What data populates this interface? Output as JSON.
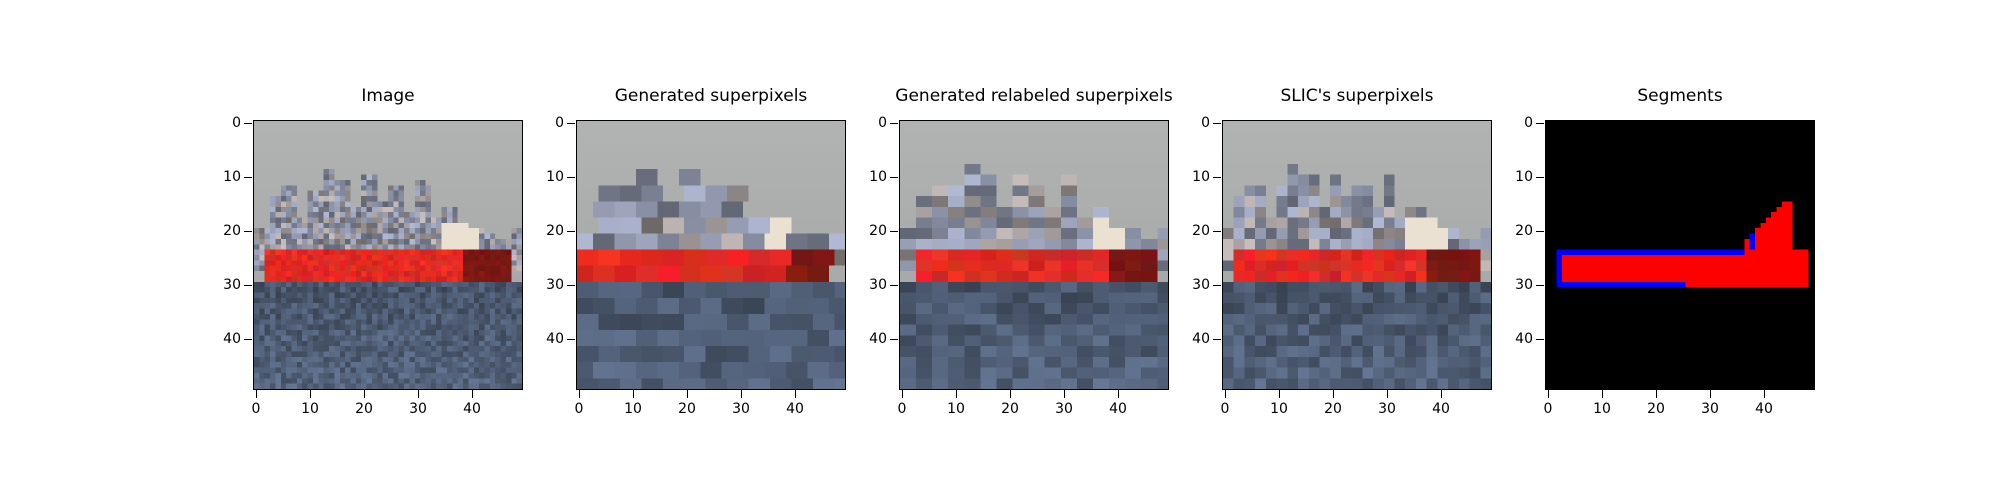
{
  "chart_data": [
    {
      "type": "heatmap",
      "title": "Image",
      "grid": false,
      "xlim": [
        0,
        49
      ],
      "ylim": [
        49,
        0
      ],
      "xticks": [
        0,
        10,
        20,
        30,
        40
      ],
      "yticks": [
        0,
        10,
        20,
        30,
        40
      ],
      "xtick_labels": [
        "0",
        "10",
        "20",
        "30",
        "40"
      ],
      "ytick_labels": [
        "0",
        "10",
        "20",
        "30",
        "40"
      ]
    },
    {
      "type": "heatmap",
      "title": "Generated superpixels",
      "grid": false,
      "xlim": [
        0,
        49
      ],
      "ylim": [
        49,
        0
      ],
      "xticks": [
        0,
        10,
        20,
        30,
        40
      ],
      "yticks": [
        0,
        10,
        20,
        30,
        40
      ],
      "xtick_labels": [
        "0",
        "10",
        "20",
        "30",
        "40"
      ],
      "ytick_labels": [
        "0",
        "10",
        "20",
        "30",
        "40"
      ]
    },
    {
      "type": "heatmap",
      "title": "Generated relabeled superpixels",
      "grid": false,
      "xlim": [
        0,
        49
      ],
      "ylim": [
        49,
        0
      ],
      "xticks": [
        0,
        10,
        20,
        30,
        40
      ],
      "yticks": [
        0,
        10,
        20,
        30,
        40
      ],
      "xtick_labels": [
        "0",
        "10",
        "20",
        "30",
        "40"
      ],
      "ytick_labels": [
        "0",
        "10",
        "20",
        "30",
        "40"
      ]
    },
    {
      "type": "heatmap",
      "title": "SLIC's superpixels",
      "grid": false,
      "xlim": [
        0,
        49
      ],
      "ylim": [
        49,
        0
      ],
      "xticks": [
        0,
        10,
        20,
        30,
        40
      ],
      "yticks": [
        0,
        10,
        20,
        30,
        40
      ],
      "xtick_labels": [
        "0",
        "10",
        "20",
        "30",
        "40"
      ],
      "ytick_labels": [
        "0",
        "10",
        "20",
        "30",
        "40"
      ]
    },
    {
      "type": "heatmap",
      "title": "Segments",
      "grid": false,
      "xlim": [
        0,
        49
      ],
      "ylim": [
        49,
        0
      ],
      "xticks": [
        0,
        10,
        20,
        30,
        40
      ],
      "yticks": [
        0,
        10,
        20,
        30,
        40
      ],
      "xtick_labels": [
        "0",
        "10",
        "20",
        "30",
        "40"
      ],
      "ytick_labels": [
        "0",
        "10",
        "20",
        "30",
        "40"
      ],
      "colors": {
        "background": "#000000",
        "segment": "#ff0000",
        "boundary": "#0000ff"
      }
    }
  ]
}
